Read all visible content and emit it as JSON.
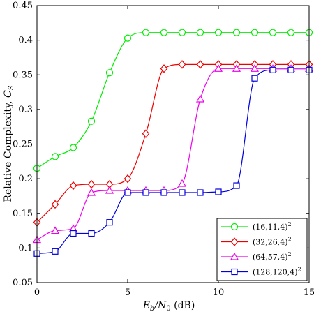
{
  "chart_data": {
    "type": "line",
    "xlabel": "E_b/N_0 (dB)",
    "xlabel_parts": {
      "main": "E",
      "sub1": "b",
      "slash": "/N",
      "sub2": "0",
      "unit": " (dB)"
    },
    "ylabel": "Relative Complexity, C_S",
    "ylabel_parts": {
      "main": "Relative Complexity, ",
      "sym": "C",
      "sub": "S"
    },
    "xlim": [
      0,
      15
    ],
    "ylim": [
      0.05,
      0.45
    ],
    "xticks": [
      0,
      5,
      10,
      15
    ],
    "yticks": [
      0.05,
      0.1,
      0.15,
      0.2,
      0.25,
      0.3,
      0.35,
      0.4,
      0.45
    ],
    "ytick_labels": [
      "0.05",
      "0.1",
      "0.15",
      "0.2",
      "0.25",
      "0.3",
      "0.35",
      "0.4",
      "0.45"
    ],
    "grid": false,
    "legend_position": "bottom-right",
    "series": [
      {
        "name": "(16,11,4)",
        "label_base": "(16,11,4)",
        "label_exp": "2",
        "color": "#00ee00",
        "marker": "circle",
        "x": [
          0,
          1,
          2,
          3,
          4,
          5,
          6,
          7,
          8,
          9,
          10,
          11,
          12,
          13,
          14,
          15
        ],
        "y": [
          0.215,
          0.232,
          0.245,
          0.283,
          0.353,
          0.403,
          0.411,
          0.411,
          0.411,
          0.411,
          0.411,
          0.411,
          0.411,
          0.411,
          0.411,
          0.411
        ]
      },
      {
        "name": "(32,26,4)",
        "label_base": "(32,26,4)",
        "label_exp": "2",
        "color": "#ee0000",
        "marker": "diamond",
        "x": [
          0,
          1,
          2,
          3,
          4,
          5,
          6,
          7,
          8,
          9,
          10,
          11,
          12,
          13,
          14,
          15
        ],
        "y": [
          0.137,
          0.163,
          0.19,
          0.192,
          0.192,
          0.2,
          0.265,
          0.359,
          0.365,
          0.365,
          0.365,
          0.365,
          0.365,
          0.365,
          0.365,
          0.365
        ]
      },
      {
        "name": "(64,57,4)",
        "label_base": "(64,57,4)",
        "label_exp": "2",
        "color": "#ee00ee",
        "marker": "triangle",
        "x": [
          0,
          1,
          2,
          3,
          4,
          5,
          6,
          7,
          8,
          9,
          10,
          11,
          12,
          13,
          14,
          15
        ],
        "y": [
          0.112,
          0.125,
          0.128,
          0.18,
          0.183,
          0.183,
          0.183,
          0.183,
          0.193,
          0.315,
          0.359,
          0.359,
          0.359,
          0.359,
          0.359,
          0.359
        ]
      },
      {
        "name": "(128,120,4)",
        "label_base": "(128,120,4)",
        "label_exp": "2",
        "color": "#0000dd",
        "marker": "square",
        "x": [
          0,
          1,
          2,
          3,
          4,
          5,
          6,
          7,
          8,
          9,
          10,
          11,
          12,
          13,
          14,
          15
        ],
        "y": [
          0.092,
          0.095,
          0.121,
          0.121,
          0.137,
          0.18,
          0.18,
          0.18,
          0.18,
          0.18,
          0.181,
          0.19,
          0.345,
          0.357,
          0.357,
          0.357
        ]
      }
    ]
  }
}
